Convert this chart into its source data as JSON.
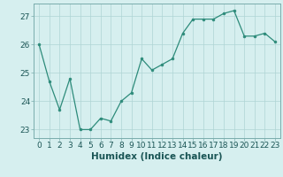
{
  "x": [
    0,
    1,
    2,
    3,
    4,
    5,
    6,
    7,
    8,
    9,
    10,
    11,
    12,
    13,
    14,
    15,
    16,
    17,
    18,
    19,
    20,
    21,
    22,
    23
  ],
  "y": [
    26.0,
    24.7,
    23.7,
    24.8,
    23.0,
    23.0,
    23.4,
    23.3,
    24.0,
    24.3,
    25.5,
    25.1,
    25.3,
    25.5,
    26.4,
    26.9,
    26.9,
    26.9,
    27.1,
    27.2,
    26.3,
    26.3,
    26.4,
    26.1
  ],
  "line_color": "#2d8b7a",
  "marker_color": "#2d8b7a",
  "bg_color": "#d6efef",
  "grid_color": "#afd4d4",
  "xlabel": "Humidex (Indice chaleur)",
  "xlim": [
    -0.5,
    23.5
  ],
  "ylim": [
    22.7,
    27.45
  ],
  "yticks": [
    23,
    24,
    25,
    26,
    27
  ],
  "xticks": [
    0,
    1,
    2,
    3,
    4,
    5,
    6,
    7,
    8,
    9,
    10,
    11,
    12,
    13,
    14,
    15,
    16,
    17,
    18,
    19,
    20,
    21,
    22,
    23
  ],
  "font_size": 6.5,
  "xlabel_font_size": 7.5
}
